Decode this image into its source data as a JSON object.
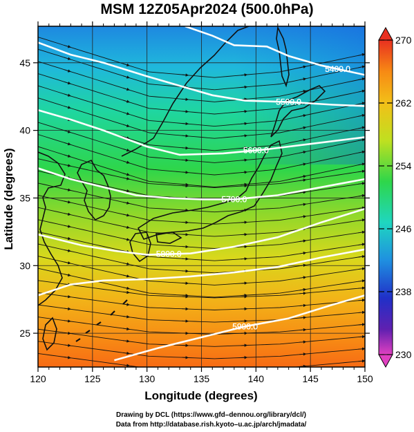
{
  "title": "MSM 12Z05Apr2024 (500.0hPa)",
  "chart_data": {
    "type": "map",
    "x_axis": {
      "label": "Longitude (degrees)",
      "range": [
        120,
        150
      ],
      "ticks": [
        120,
        125,
        130,
        135,
        140,
        145,
        150
      ],
      "minor_ticks": [
        121,
        122,
        123,
        124,
        126,
        127,
        128,
        129,
        131,
        132,
        133,
        134,
        136,
        137,
        138,
        139,
        141,
        142,
        143,
        144,
        146,
        147,
        148,
        149
      ]
    },
    "y_axis": {
      "label": "Latitude  (degrees)",
      "range": [
        22.5,
        47.7
      ],
      "ticks": [
        25,
        30,
        35,
        40,
        45
      ]
    },
    "grid": true,
    "shading": {
      "quantity": "temperature (colorbar 230-270)",
      "colorbar_min": 230,
      "colorbar_max": 270,
      "colorbar_ticks": [
        230,
        238,
        246,
        254,
        262,
        270
      ],
      "colorbar_position": "right"
    },
    "contours": [
      {
        "label": "5400.0",
        "points": [
          [
            133.5,
            47.7
          ],
          [
            136,
            47
          ],
          [
            138,
            46.3
          ],
          [
            141,
            46.2
          ],
          [
            143,
            45.5
          ],
          [
            146,
            44.8
          ],
          [
            150,
            44.1
          ]
        ]
      },
      {
        "label": "5500.0",
        "points": [
          [
            120,
            46.5
          ],
          [
            123,
            45.6
          ],
          [
            126,
            45
          ],
          [
            130,
            44
          ],
          [
            133,
            43.3
          ],
          [
            136,
            42.6
          ],
          [
            139,
            42.2
          ],
          [
            143,
            42.1
          ],
          [
            147,
            41.9
          ],
          [
            150,
            41.8
          ]
        ]
      },
      {
        "label": "5600.0",
        "points": [
          [
            120,
            41.5
          ],
          [
            123,
            40.8
          ],
          [
            126,
            40
          ],
          [
            130,
            38.8
          ],
          [
            133,
            38.2
          ],
          [
            137,
            38.3
          ],
          [
            141,
            38.6
          ],
          [
            145,
            39
          ],
          [
            150,
            39.5
          ]
        ]
      },
      {
        "label": "5700.0",
        "points": [
          [
            120,
            37.2
          ],
          [
            123,
            36.4
          ],
          [
            126,
            35.8
          ],
          [
            129,
            35.2
          ],
          [
            132,
            35
          ],
          [
            135,
            34.9
          ],
          [
            138,
            34.9
          ],
          [
            142,
            35.2
          ],
          [
            146,
            35.8
          ],
          [
            150,
            36.4
          ]
        ]
      },
      {
        "label": "5800.0",
        "points": [
          [
            120,
            32.3
          ],
          [
            124,
            31.5
          ],
          [
            127,
            31.1
          ],
          [
            130,
            30.8
          ],
          [
            134,
            30.9
          ],
          [
            138,
            31.4
          ],
          [
            142,
            32.1
          ],
          [
            146,
            33.2
          ],
          [
            150,
            34.2
          ]
        ]
      },
      {
        "label": "",
        "points": [
          [
            120,
            27.8
          ],
          [
            123,
            28.6
          ],
          [
            126,
            28.9
          ],
          [
            130,
            29
          ],
          [
            134,
            29.2
          ],
          [
            138,
            29.5
          ],
          [
            142,
            29.9
          ],
          [
            146,
            30.6
          ],
          [
            150,
            31.2
          ]
        ]
      },
      {
        "label": "5900.0",
        "points": [
          [
            127,
            23
          ],
          [
            131,
            23.9
          ],
          [
            135,
            24.7
          ],
          [
            139,
            25.5
          ],
          [
            143,
            26.1
          ],
          [
            147,
            27.1
          ],
          [
            150,
            27.8
          ]
        ]
      }
    ]
  },
  "credits": [
    "Drawing by DCL (https://www.gfd–dennou.org/library/dcl/)",
    "Data from http://database.rish.kyoto–u.ac.jp/arch/jmadata/"
  ]
}
